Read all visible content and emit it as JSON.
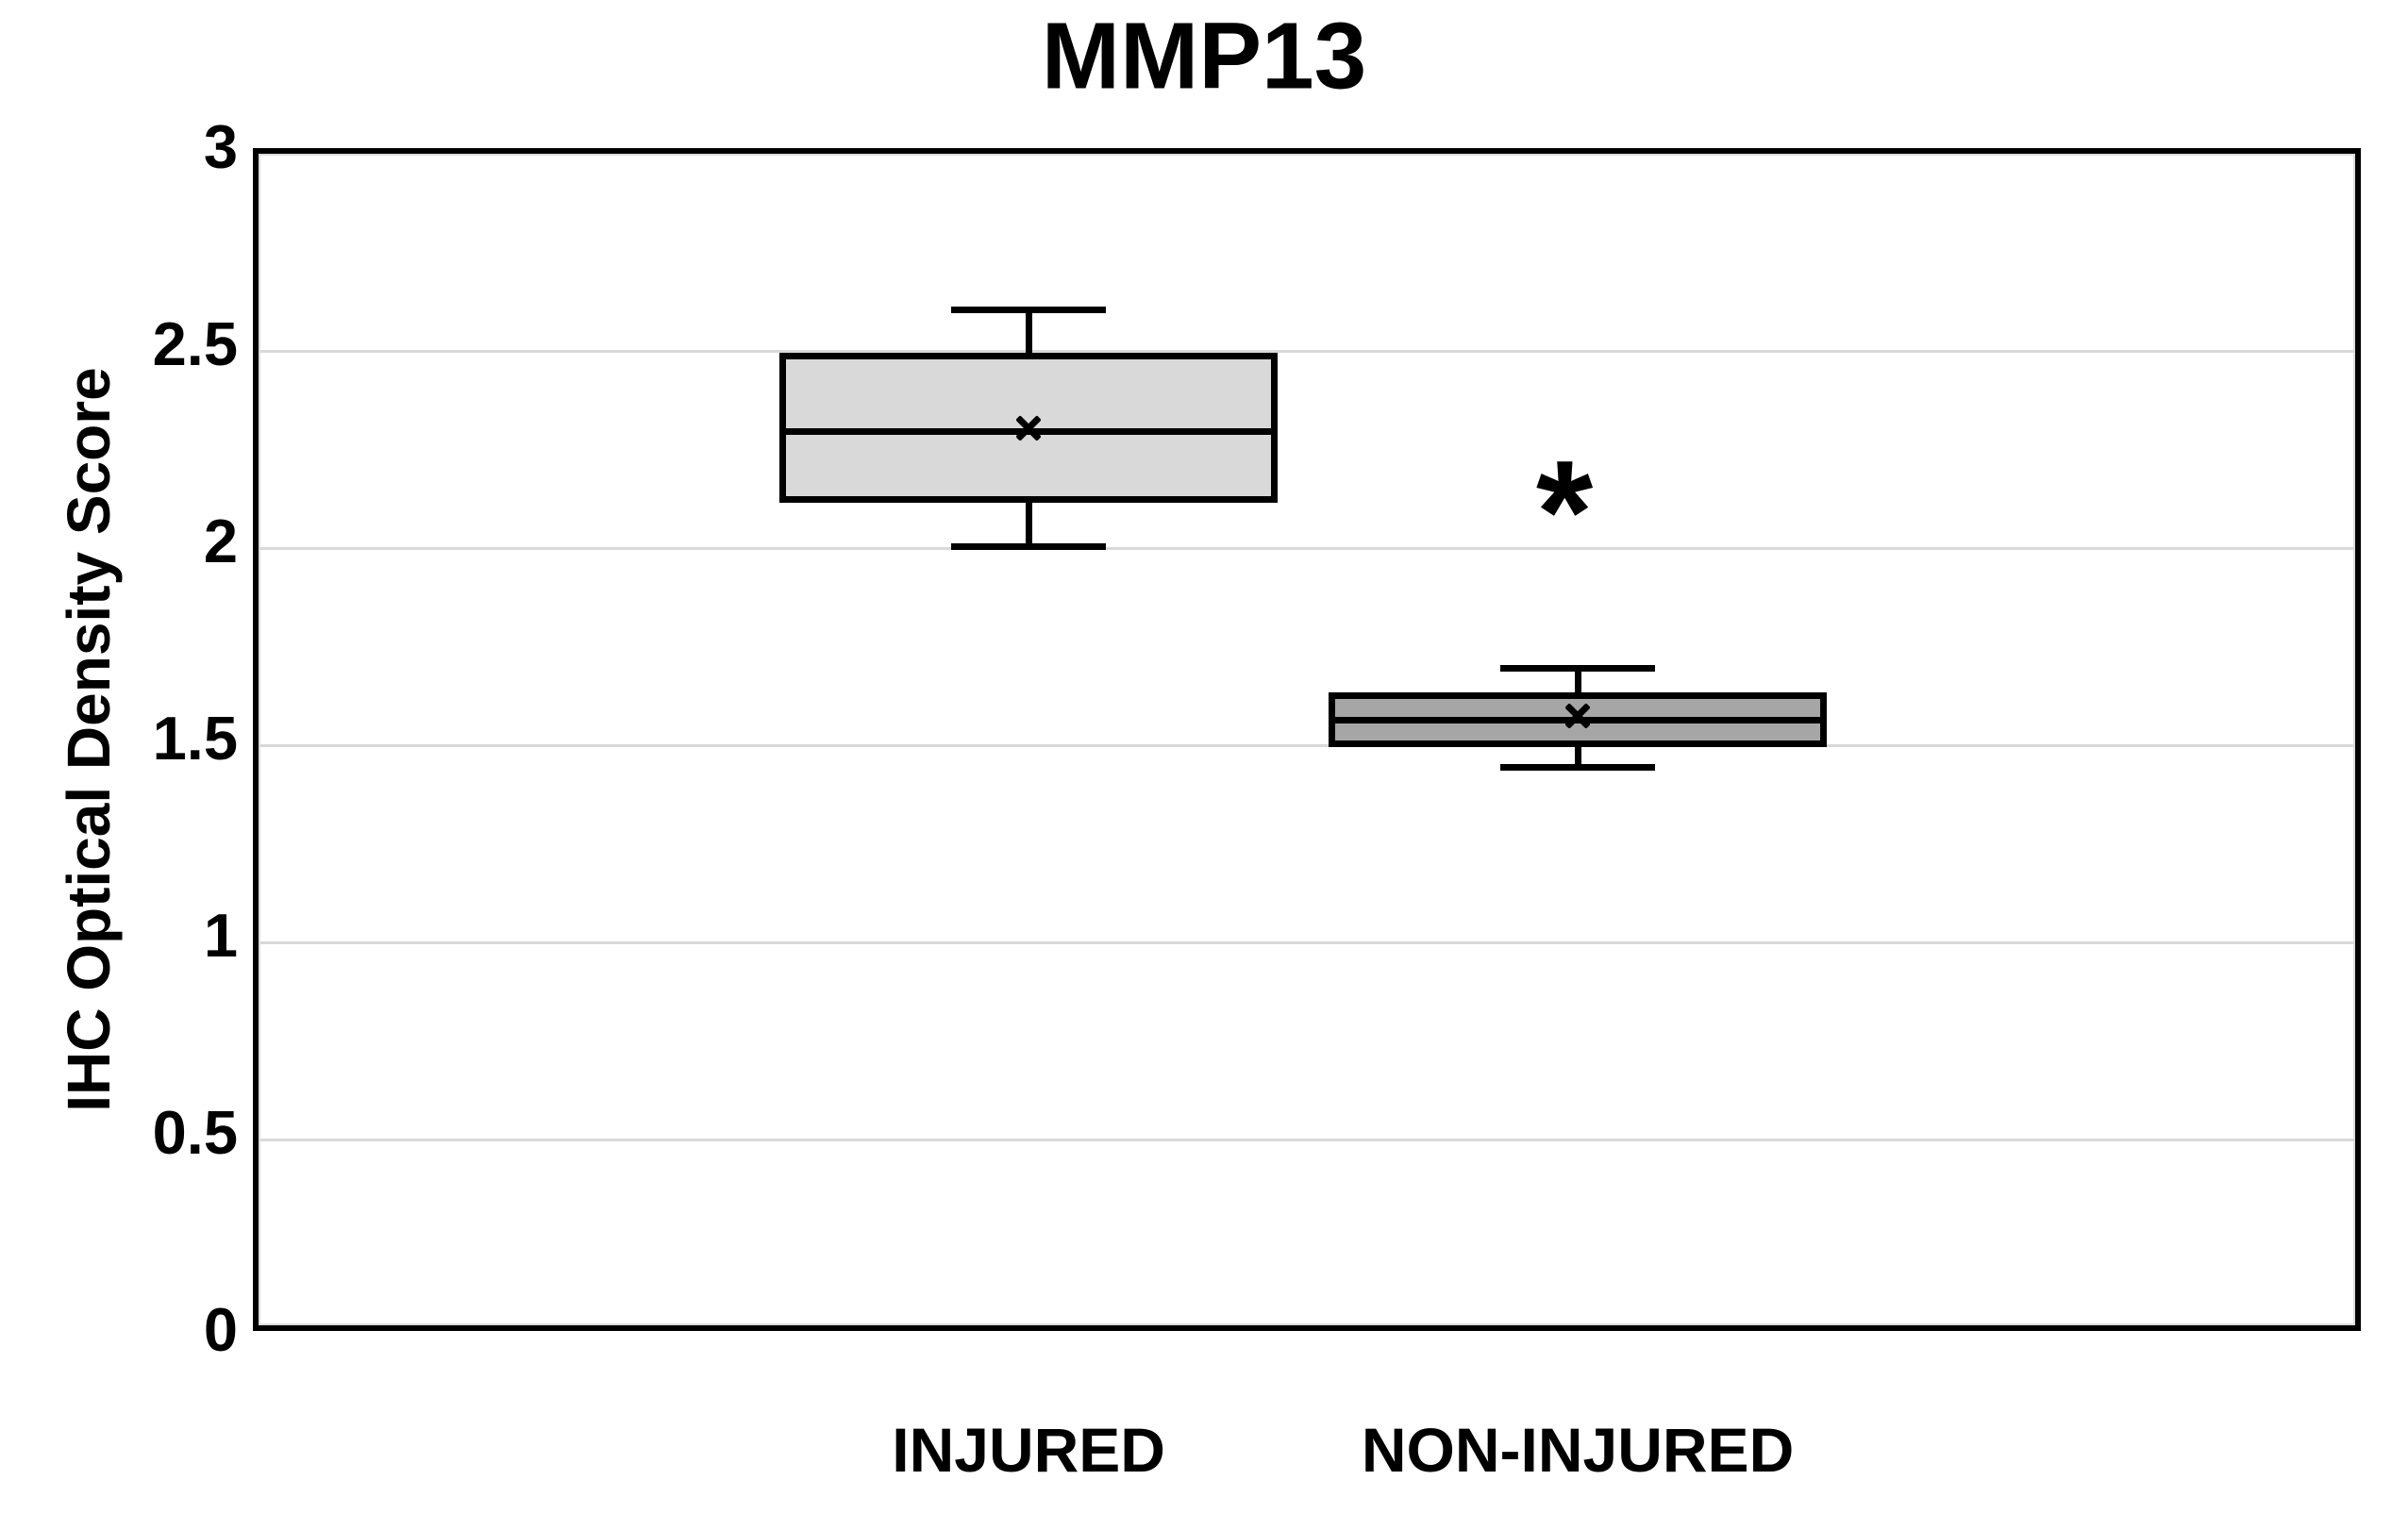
{
  "chart_data": {
    "type": "box",
    "title": "MMP13",
    "ylabel": "IHC Optical Density Score",
    "xlabel": "",
    "ylim": [
      0,
      3
    ],
    "yticks": [
      0,
      0.5,
      1,
      1.5,
      2,
      2.5,
      3
    ],
    "grid": true,
    "legend_position": "none",
    "categories": [
      "INJURED",
      "NON-INJURED"
    ],
    "series": [
      {
        "name": "INJURED",
        "min": 1.99,
        "q1": 2.1,
        "median": 2.28,
        "q3": 2.48,
        "max": 2.59,
        "mean": 2.29,
        "fill": "#d9d9d9"
      },
      {
        "name": "NON-INJURED",
        "min": 1.43,
        "q1": 1.48,
        "median": 1.55,
        "q3": 1.62,
        "max": 1.68,
        "mean": 1.56,
        "fill": "#a6a6a6"
      }
    ],
    "annotations": [
      {
        "text": "*",
        "category": "NON-INJURED",
        "y": 2.14
      }
    ],
    "colors": {
      "box_border": "#000000",
      "gridline": "#d9d9d9",
      "text": "#000000",
      "background": "#ffffff"
    }
  }
}
